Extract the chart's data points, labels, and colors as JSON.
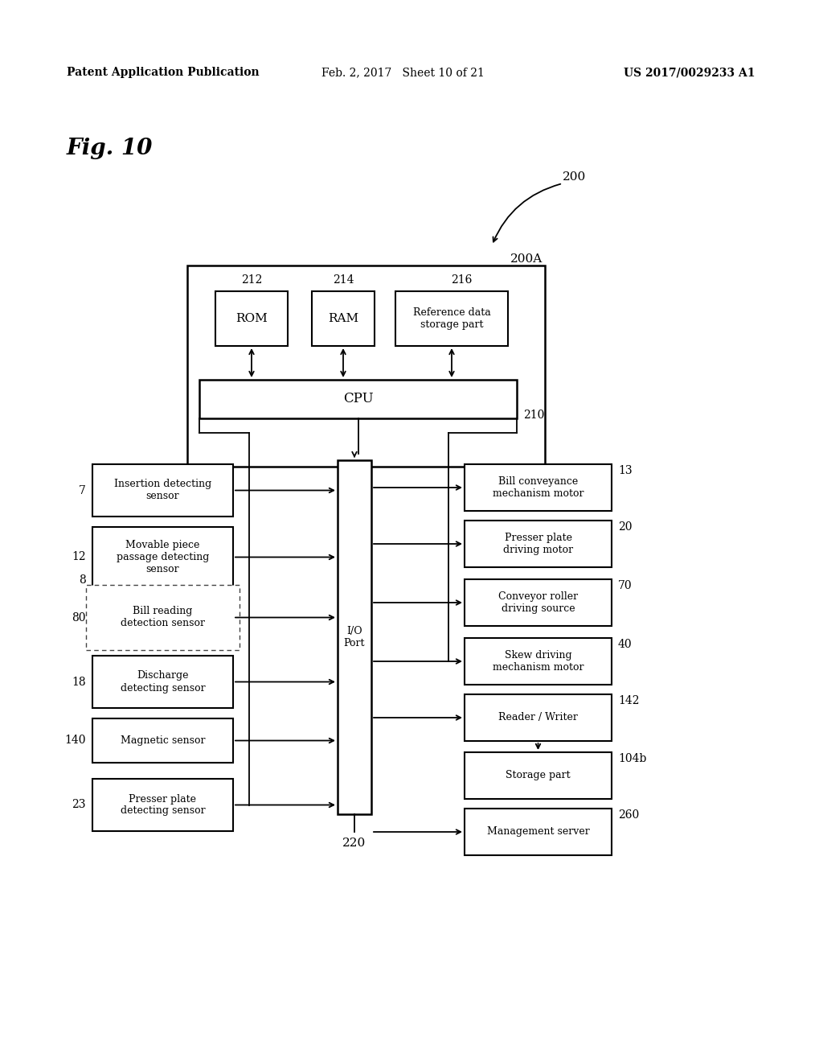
{
  "bg_color": "#ffffff",
  "header_left": "Patent Application Publication",
  "header_mid": "Feb. 2, 2017   Sheet 10 of 21",
  "header_right": "US 2017/0029233 A1",
  "fig_label": "Fig. 10",
  "label_200": "200",
  "label_200A": "200A",
  "label_210": "210",
  "label_220": "220",
  "label_212": "212",
  "label_214": "214",
  "label_216": "216",
  "box_ROM": "ROM",
  "box_RAM": "RAM",
  "box_ref": "Reference data\nstorage part",
  "box_CPU": "CPU",
  "box_IO": "I/O\nPort",
  "left_boxes": [
    {
      "label": "7",
      "text": "Insertion detecting\nsensor",
      "dashed": false,
      "group_label": ""
    },
    {
      "label": "12",
      "text": "Movable piece\npassage detecting\nsensor",
      "dashed": false,
      "group_label": ""
    },
    {
      "label": "80",
      "text": "Bill reading\ndetection sensor",
      "dashed": true,
      "group_label": "8"
    },
    {
      "label": "18",
      "text": "Discharge\ndetecting sensor",
      "dashed": false,
      "group_label": ""
    },
    {
      "label": "140",
      "text": "Magnetic sensor",
      "dashed": false,
      "group_label": ""
    },
    {
      "label": "23",
      "text": "Presser plate\ndetecting sensor",
      "dashed": false,
      "group_label": ""
    }
  ],
  "right_boxes": [
    {
      "label": "13",
      "text": "Bill conveyance\nmechanism motor",
      "arrow_from_io": true,
      "arrow_from_rw": false
    },
    {
      "label": "20",
      "text": "Presser plate\ndriving motor",
      "arrow_from_io": true,
      "arrow_from_rw": false
    },
    {
      "label": "70",
      "text": "Conveyor roller\ndriving source",
      "arrow_from_io": true,
      "arrow_from_rw": false
    },
    {
      "label": "40",
      "text": "Skew driving\nmechanism motor",
      "arrow_from_io": true,
      "arrow_from_rw": false
    },
    {
      "label": "142",
      "text": "Reader / Writer",
      "arrow_from_io": true,
      "arrow_from_rw": false
    },
    {
      "label": "104b",
      "text": "Storage part",
      "arrow_from_io": false,
      "arrow_from_rw": true
    },
    {
      "label": "260",
      "text": "Management server",
      "arrow_from_io": true,
      "arrow_from_rw": false
    }
  ]
}
